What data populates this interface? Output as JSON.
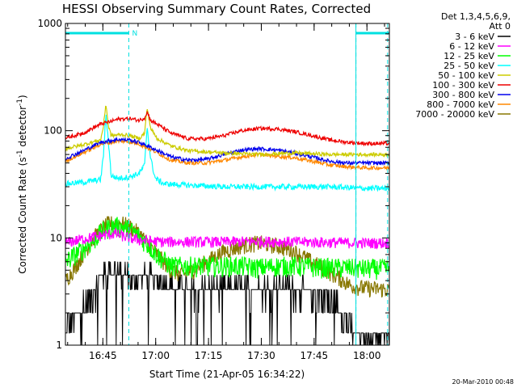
{
  "chart_data": {
    "type": "line",
    "title": "HESSI Observing Summary Count Rates, Corrected",
    "xlabel": "Start Time (21-Apr-05 16:34:22)",
    "ylabel_main": "Corrected Count Rate (s",
    "ylabel_sup1": "-1",
    "ylabel_mid": " detector",
    "ylabel_sup2": "-1",
    "ylabel_end": ")",
    "yscale": "log",
    "ylim": [
      1,
      1000
    ],
    "xlim_minutes": [
      0,
      92
    ],
    "x_ticks": [
      {
        "label": "16:45",
        "minutes": 10.63
      },
      {
        "label": "17:00",
        "minutes": 25.63
      },
      {
        "label": "17:15",
        "minutes": 40.63
      },
      {
        "label": "17:30",
        "minutes": 55.63
      },
      {
        "label": "17:45",
        "minutes": 70.63
      },
      {
        "label": "18:00",
        "minutes": 85.63
      }
    ],
    "y_ticks": [
      {
        "label": "1",
        "value": 1
      },
      {
        "label": "10",
        "value": 10
      },
      {
        "label": "100",
        "value": 100
      },
      {
        "label": "1000",
        "value": 1000
      }
    ],
    "legend_header": [
      "Det 1,3,4,5,6,9,",
      "Att 0"
    ],
    "legend_position": "right",
    "night_marker_label": "N",
    "night_intervals_minutes": [
      [
        0,
        18
      ],
      [
        82.5,
        92
      ]
    ],
    "saa_lines_minutes": [
      18,
      82.5,
      91.5
    ],
    "series": [
      {
        "name": "3 - 6 keV",
        "color": "#000000",
        "x": [
          0,
          4,
          8,
          10,
          14,
          18,
          19,
          22,
          26,
          30,
          35,
          40,
          45,
          50,
          55,
          60,
          65,
          70,
          75,
          78,
          80,
          82,
          85,
          88,
          92
        ],
        "y": [
          1.4,
          2.0,
          3.0,
          4.5,
          5.0,
          4.5,
          4.0,
          4.5,
          4.0,
          3.5,
          3.2,
          3.3,
          3.3,
          3.3,
          3.4,
          3.3,
          3.3,
          3.0,
          2.5,
          2.2,
          1.6,
          1.3,
          1.3,
          1.3,
          1.3
        ]
      },
      {
        "name": "6 - 12 keV",
        "color": "#ff00ff",
        "x": [
          0,
          5,
          10,
          14,
          18,
          22,
          25,
          28,
          35,
          45,
          55,
          65,
          75,
          85,
          92
        ],
        "y": [
          9.0,
          9.8,
          10.5,
          11.0,
          10.0,
          9.5,
          9.3,
          9.2,
          9.2,
          9.2,
          9.3,
          9.2,
          9.1,
          9.0,
          9.0
        ]
      },
      {
        "name": "12 - 25 keV",
        "color": "#00ff00",
        "x": [
          0,
          4,
          8,
          11,
          14,
          17,
          20,
          23,
          26,
          30,
          35,
          40,
          45,
          50,
          55,
          60,
          65,
          70,
          75,
          80,
          85,
          92
        ],
        "y": [
          6.0,
          7.5,
          9.5,
          12.0,
          13.0,
          12.5,
          11.0,
          9.0,
          7.0,
          5.5,
          5.5,
          5.5,
          5.5,
          5.5,
          5.3,
          5.5,
          5.5,
          5.4,
          5.3,
          5.3,
          5.2,
          5.2
        ]
      },
      {
        "name": "25 - 50 keV",
        "color": "#00ffff",
        "x": [
          0,
          5,
          10,
          10.8,
          11.5,
          12.2,
          13,
          15,
          18,
          21,
          22.5,
          23.2,
          24.2,
          25.5,
          28,
          35,
          45,
          55,
          65,
          75,
          85,
          92
        ],
        "y": [
          32,
          33,
          35,
          60,
          140,
          80,
          38,
          36,
          37,
          40,
          48,
          110,
          55,
          36,
          32,
          31,
          30,
          30,
          30,
          30,
          29,
          29
        ]
      },
      {
        "name": "50 - 100 keV",
        "color": "#cccc00",
        "x": [
          0,
          5,
          10,
          10.8,
          11.5,
          12.2,
          13,
          16,
          18,
          21,
          22.5,
          23.2,
          24.2,
          26,
          30,
          35,
          45,
          55,
          65,
          75,
          85,
          92
        ],
        "y": [
          68,
          74,
          82,
          110,
          180,
          110,
          90,
          92,
          90,
          85,
          95,
          165,
          105,
          85,
          72,
          65,
          62,
          60,
          62,
          60,
          60,
          60
        ]
      },
      {
        "name": "100 - 300 keV",
        "color": "#ee0000",
        "x": [
          0,
          5,
          10,
          15,
          18,
          21,
          22.5,
          23.2,
          24.2,
          27,
          30,
          35,
          40,
          45,
          50,
          55,
          60,
          65,
          70,
          75,
          80,
          85,
          92
        ],
        "y": [
          85,
          95,
          115,
          128,
          130,
          125,
          132,
          150,
          125,
          110,
          95,
          84,
          84,
          90,
          100,
          105,
          104,
          98,
          90,
          82,
          78,
          76,
          76
        ]
      },
      {
        "name": "300 - 800 keV",
        "color": "#0000ee",
        "x": [
          0,
          5,
          10,
          15,
          18,
          21,
          25,
          30,
          35,
          40,
          45,
          50,
          55,
          60,
          65,
          70,
          75,
          80,
          85,
          92
        ],
        "y": [
          55,
          65,
          78,
          83,
          82,
          78,
          68,
          57,
          53,
          54,
          60,
          66,
          68,
          66,
          62,
          57,
          52,
          50,
          50,
          50
        ]
      },
      {
        "name": "800 - 7000 keV",
        "color": "#ff8800",
        "x": [
          0,
          5,
          10,
          15,
          18,
          21,
          25,
          30,
          35,
          40,
          45,
          50,
          55,
          60,
          65,
          70,
          75,
          80,
          85,
          92
        ],
        "y": [
          52,
          62,
          75,
          80,
          79,
          75,
          65,
          53,
          50,
          50,
          53,
          57,
          60,
          58,
          56,
          52,
          48,
          46,
          45,
          45
        ]
      },
      {
        "name": "7000 - 20000 keV",
        "color": "#887700",
        "x": [
          0,
          3,
          6,
          9,
          12,
          15,
          18,
          21,
          24,
          27,
          30,
          33,
          36,
          40,
          45,
          50,
          55,
          60,
          65,
          70,
          75,
          78,
          81,
          85,
          92
        ],
        "y": [
          4.0,
          5.5,
          8.0,
          11.0,
          13.5,
          14.0,
          13.0,
          11.0,
          8.5,
          6.5,
          5.0,
          4.5,
          5.0,
          6.0,
          7.5,
          8.5,
          9.0,
          8.5,
          7.5,
          6.0,
          4.8,
          4.2,
          3.6,
          3.4,
          3.3
        ]
      }
    ],
    "grid": false
  },
  "footer_stamp": "20-Mar-2010 00:48"
}
